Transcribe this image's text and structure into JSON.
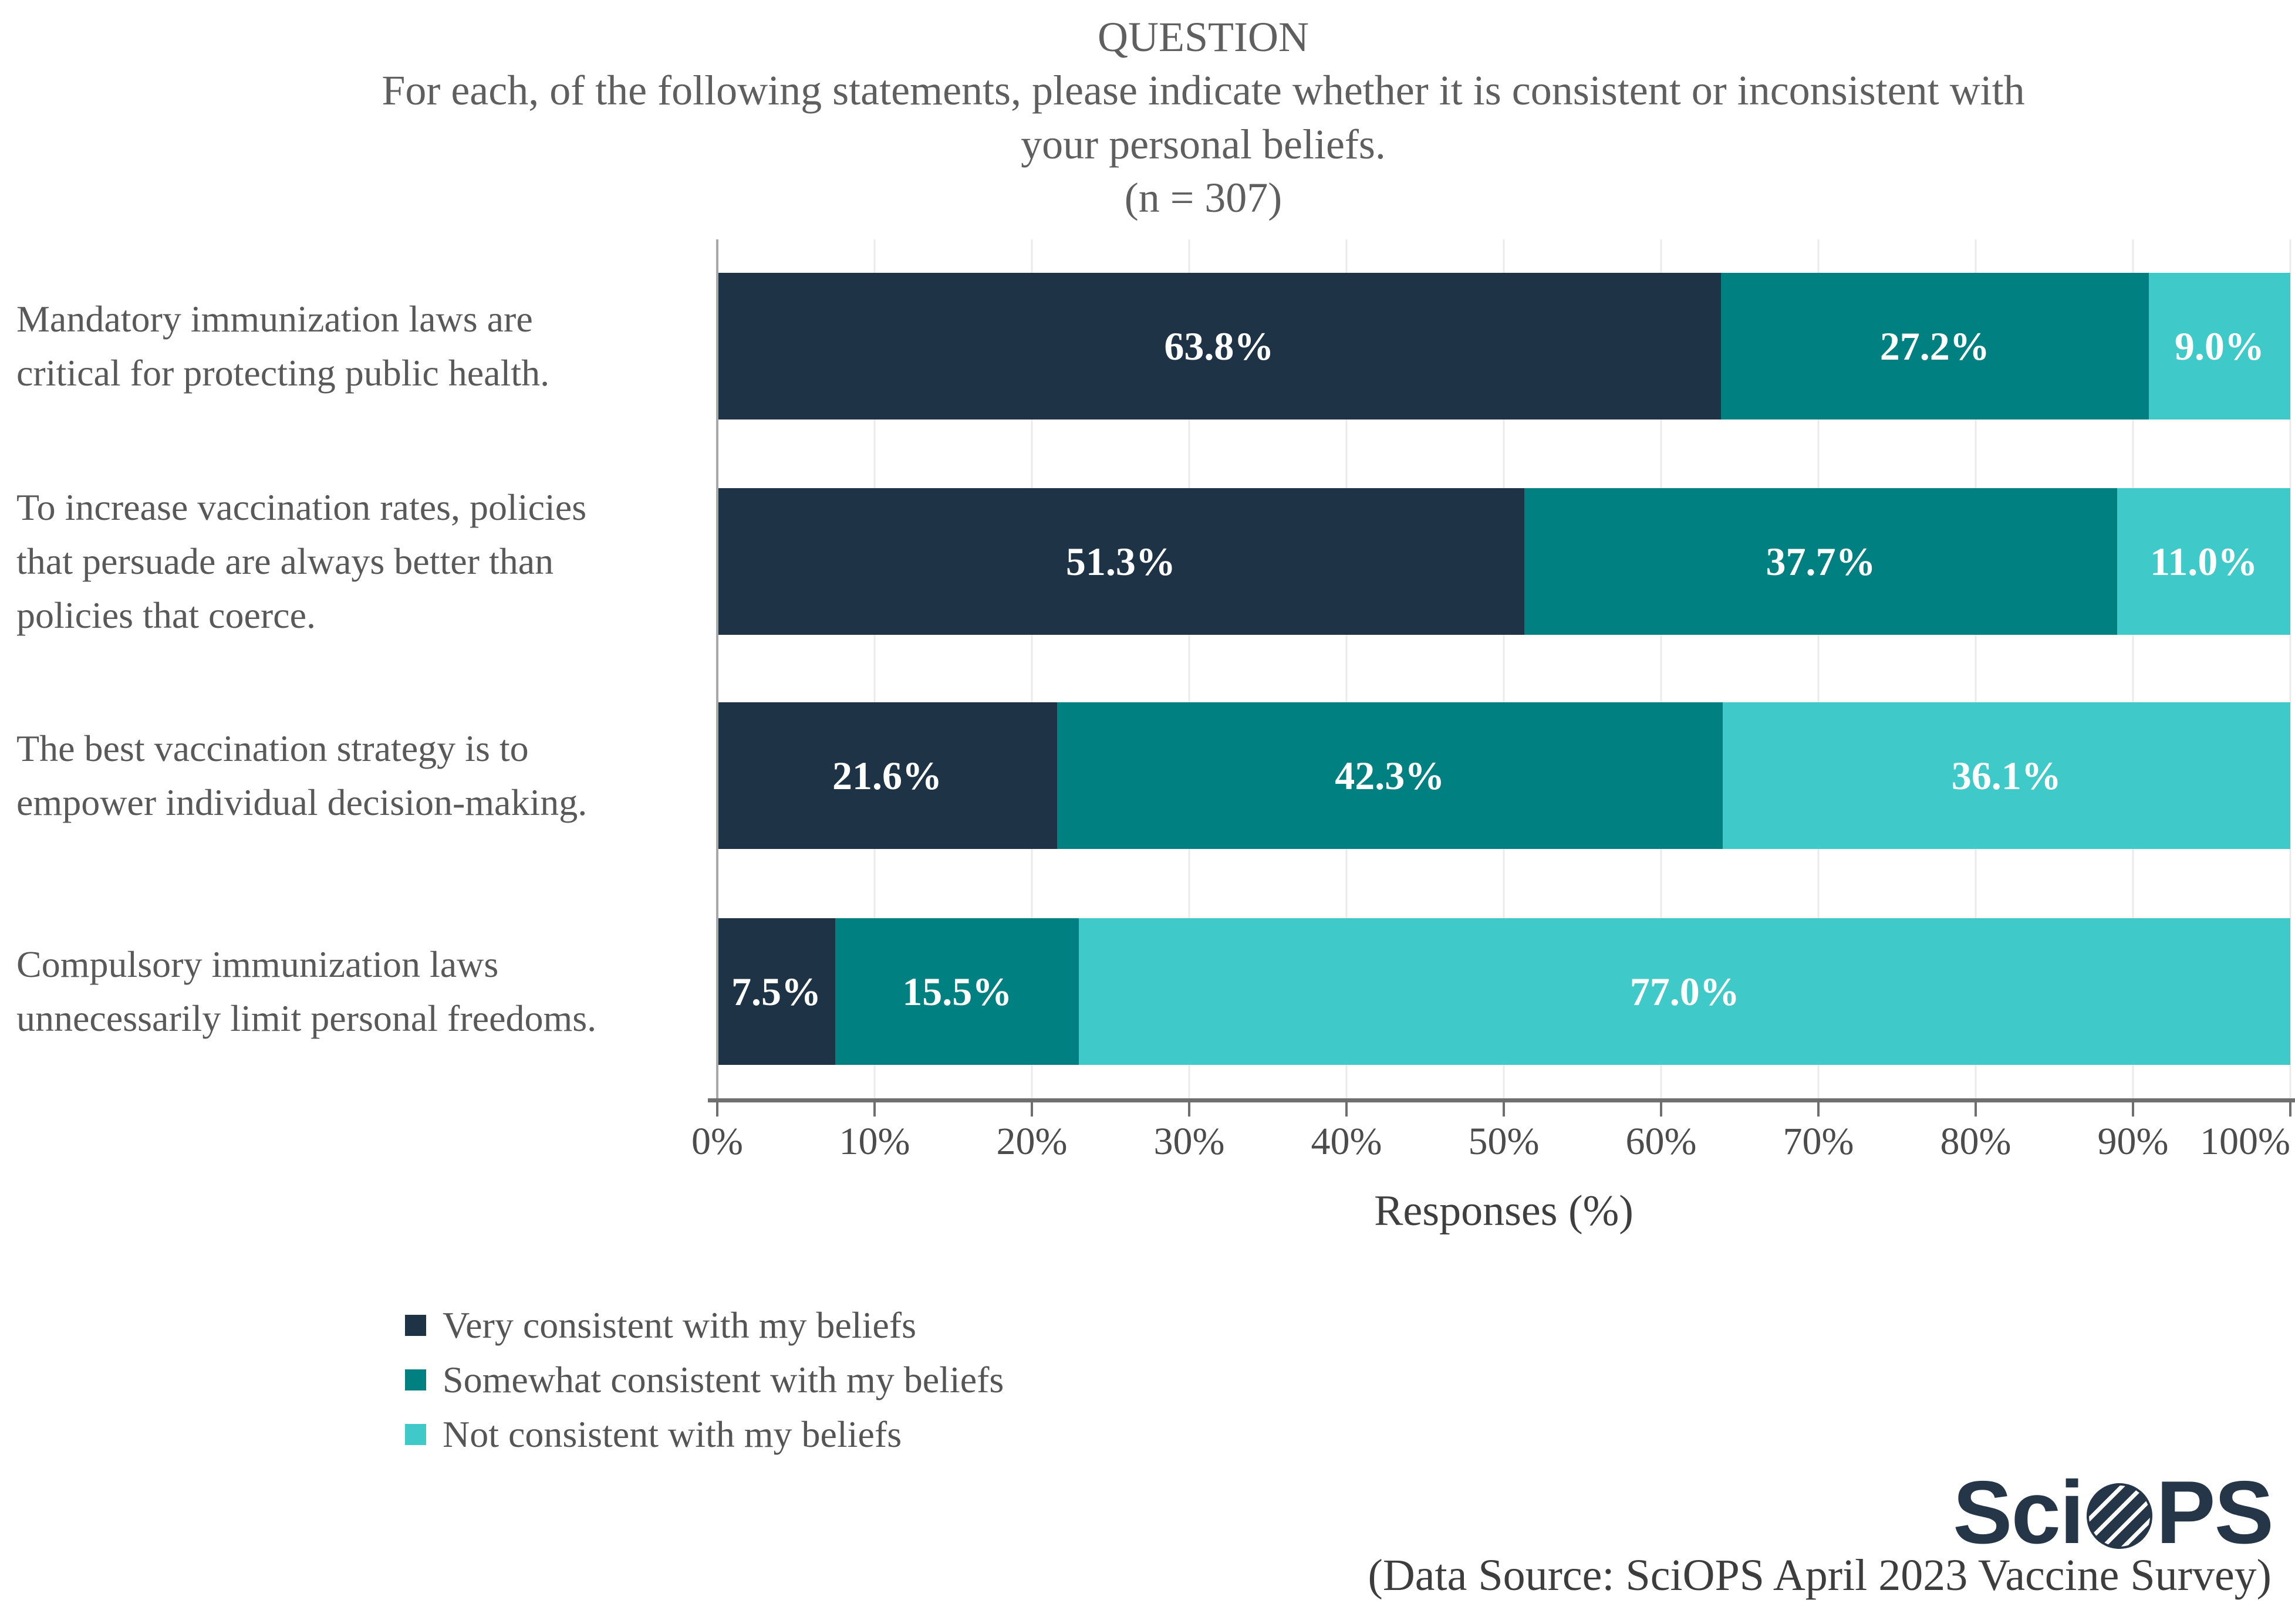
{
  "header": {
    "title": "QUESTION",
    "question": "For each, of the following statements, please indicate whether it is consistent or inconsistent with\nyour personal beliefs.",
    "sample_size": "(n = 307)"
  },
  "chart_data": {
    "type": "bar",
    "orientation": "horizontal-stacked",
    "title": "QUESTION: For each, of the following statements, please indicate whether it is consistent or inconsistent with your personal beliefs. (n = 307)",
    "categories": [
      "Mandatory immunization laws are\ncritical for protecting public health.",
      "To increase vaccination rates, policies\nthat persuade are always better than\npolicies that coerce.",
      "The best vaccination strategy is to\nempower individual decision-making.",
      "Compulsory immunization laws\nunnecessarily limit personal freedoms."
    ],
    "series": [
      {
        "name": "Very consistent with my beliefs",
        "values": [
          63.8,
          51.3,
          21.6,
          7.5
        ]
      },
      {
        "name": "Somewhat consistent with my beliefs",
        "values": [
          27.2,
          37.7,
          42.3,
          15.5
        ]
      },
      {
        "name": "Not consistent with my beliefs",
        "values": [
          9.0,
          11.0,
          36.1,
          77.0
        ]
      }
    ],
    "colors": [
      "#1f3347",
      "#008080",
      "#40c9c9"
    ],
    "value_label_color": "#ffffff",
    "x_ticks": [
      "0%",
      "10%",
      "20%",
      "30%",
      "40%",
      "50%",
      "60%",
      "70%",
      "80%",
      "90%",
      "100%"
    ],
    "xlabel": "Responses (%)",
    "xlim": [
      0,
      100
    ],
    "grid": "vertical-light-gray",
    "legend_position": "bottom-left"
  },
  "footer": {
    "logo_prefix": "Sci",
    "logo_suffix": "PS",
    "logo_icon": "hatched-globe-icon",
    "source": "(Data Source: SciOPS April 2023 Vaccine Survey)"
  }
}
